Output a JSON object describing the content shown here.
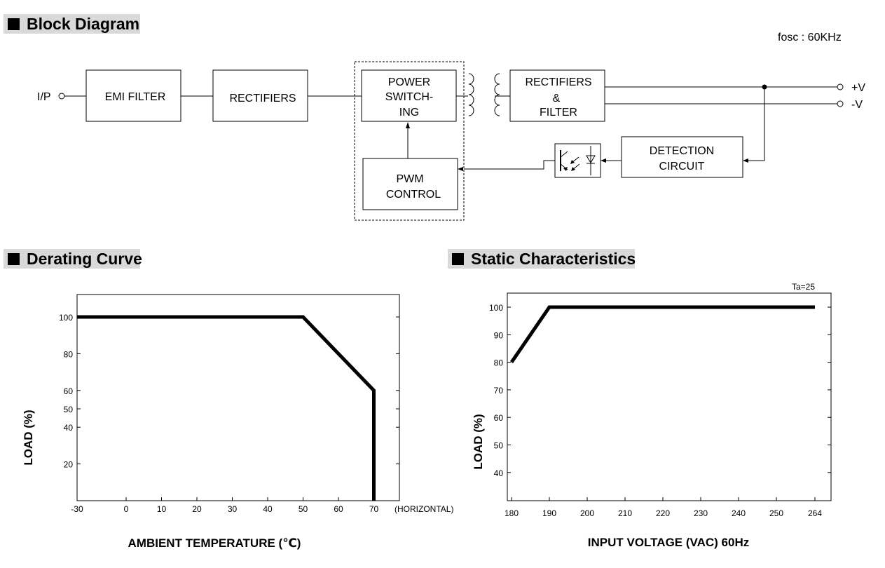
{
  "headers": {
    "block": "Block Diagram",
    "derating": "Derating Curve",
    "static": "Static Characteristics"
  },
  "block_diagram": {
    "fosc": "fosc : 60KHz",
    "ip": "I/P",
    "emi": "EMI FILTER",
    "rect1": "RECTIFIERS",
    "power": [
      "POWER",
      "SWITCH-",
      "ING"
    ],
    "rect2": [
      "RECTIFIERS",
      "&",
      "FILTER"
    ],
    "pwm": [
      "PWM",
      "CONTROL"
    ],
    "detect": [
      "DETECTION",
      "CIRCUIT"
    ],
    "vplus": "+V",
    "vminus": "-V"
  },
  "chart_data": [
    {
      "type": "line",
      "title": "Derating Curve",
      "xlabel": "AMBIENT TEMPERATURE (℃)",
      "ylabel": "LOAD (%)",
      "x_note": "(HORIZONTAL)",
      "x_ticks": [
        -30,
        0,
        10,
        20,
        30,
        40,
        50,
        60,
        70
      ],
      "y_ticks": [
        20,
        40,
        50,
        60,
        80,
        100
      ],
      "series": [
        {
          "x": [
            -30,
            50,
            70,
            70
          ],
          "y": [
            100,
            100,
            60,
            0
          ]
        }
      ]
    },
    {
      "type": "line",
      "title": "Static Characteristics",
      "xlabel": "INPUT VOLTAGE (VAC) 60Hz",
      "ylabel": "LOAD (%)",
      "annotation": "Ta=25",
      "x_ticks": [
        180,
        190,
        200,
        210,
        220,
        230,
        240,
        250,
        264
      ],
      "y_ticks": [
        40,
        50,
        60,
        70,
        80,
        90,
        100
      ],
      "series": [
        {
          "x": [
            180,
            190,
            264
          ],
          "y": [
            80,
            100,
            100
          ]
        }
      ]
    }
  ]
}
